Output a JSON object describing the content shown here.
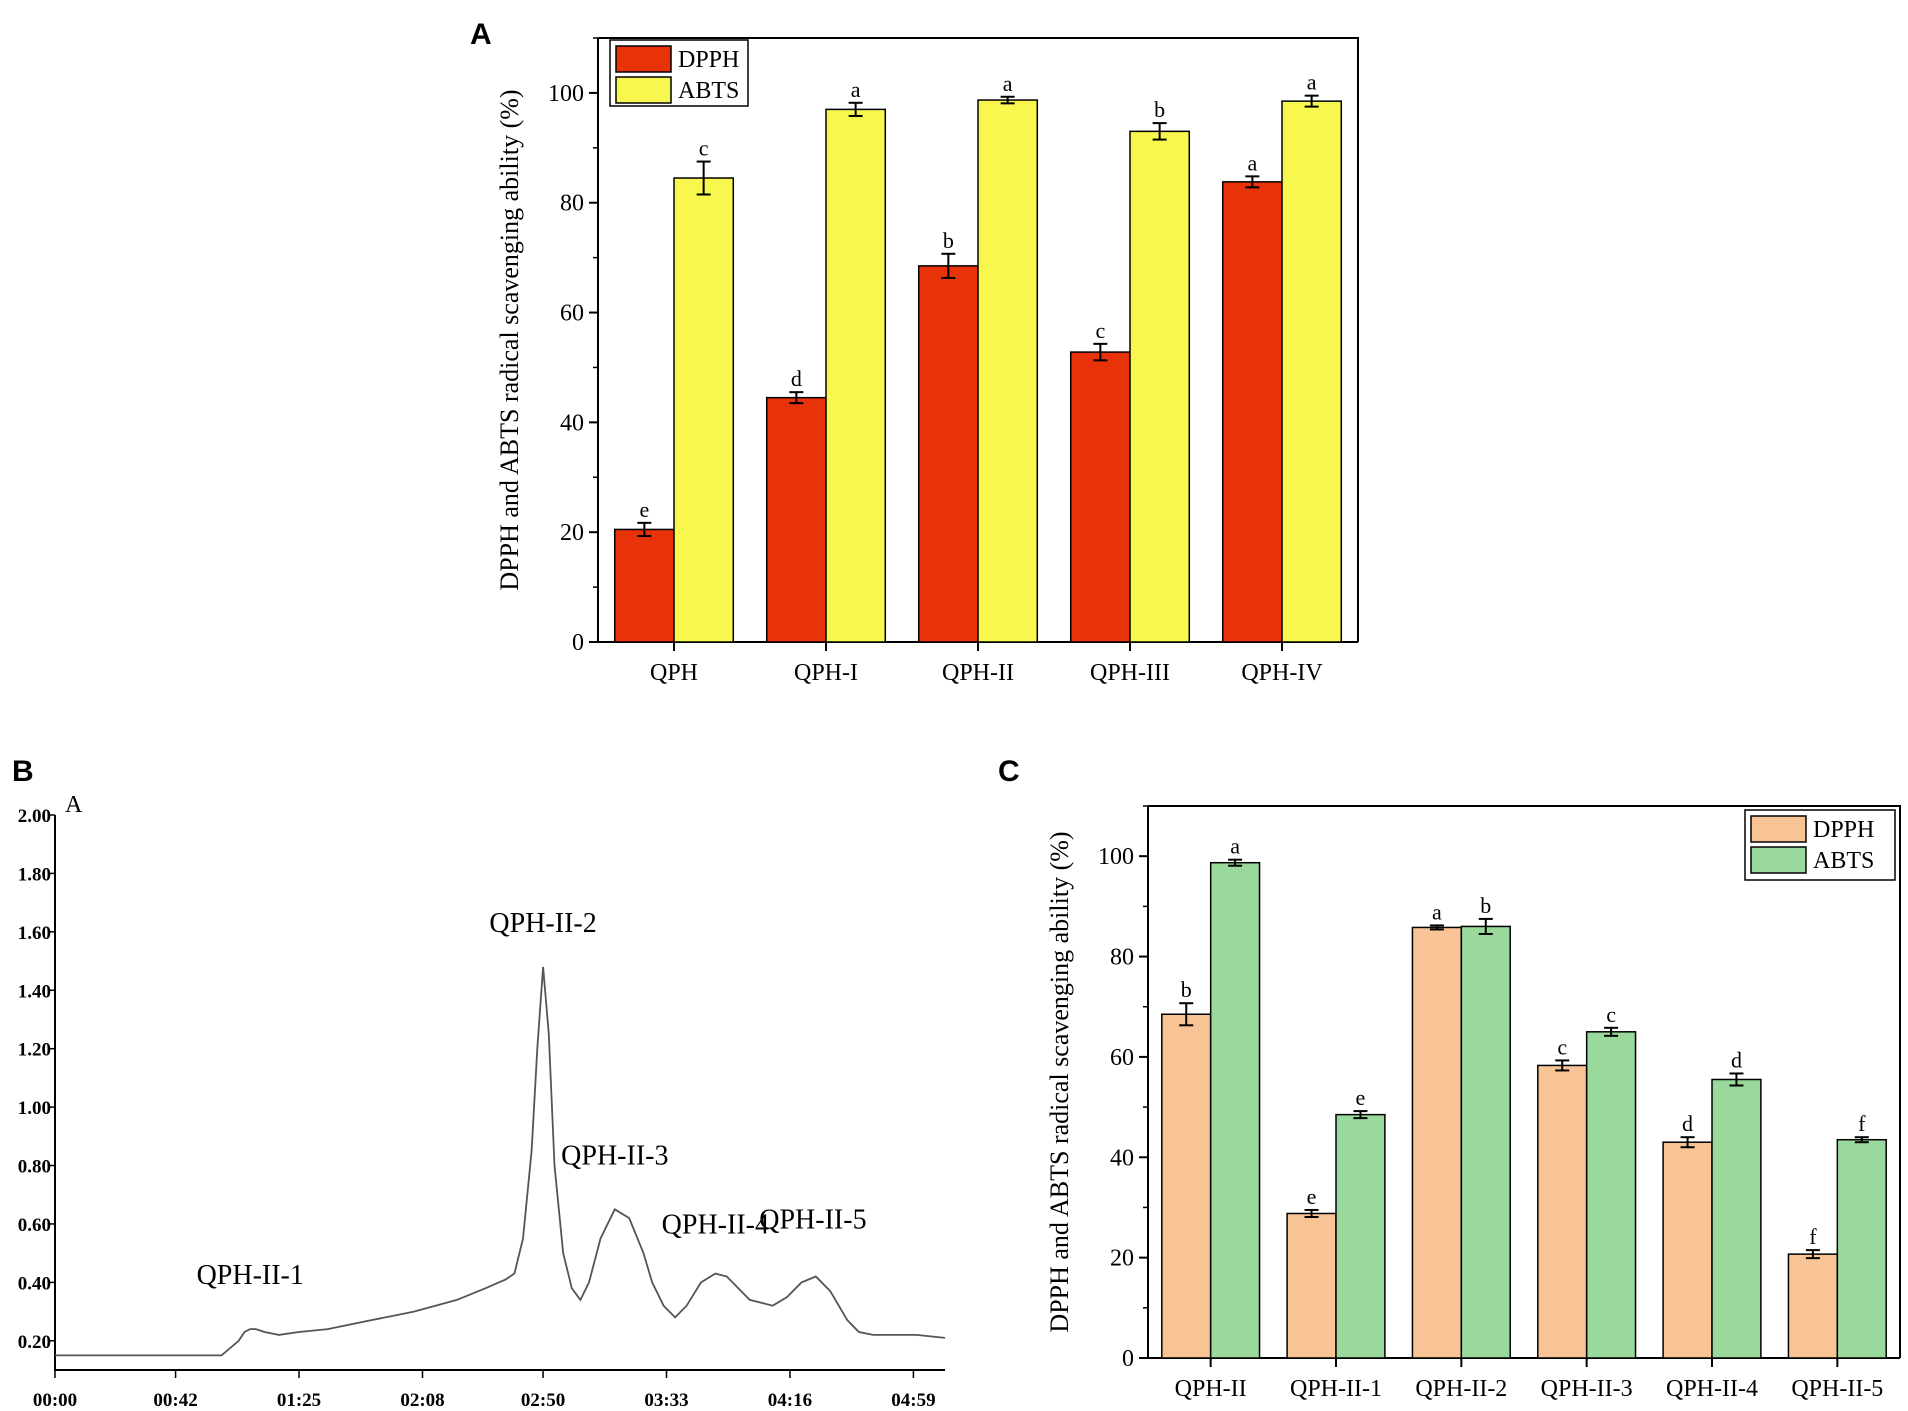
{
  "chart_data": [
    {
      "panel": "A",
      "type": "bar",
      "ylabel": "DPPH and ABTS radical scavenging ability (%)",
      "xlabel": "",
      "ylim": [
        0,
        110
      ],
      "yticks": [
        0,
        20,
        40,
        60,
        80,
        100
      ],
      "categories": [
        "QPH",
        "QPH-I",
        "QPH-II",
        "QPH-III",
        "QPH-IV"
      ],
      "series": [
        {
          "name": "DPPH",
          "color": "#e83209",
          "values": [
            20.5,
            44.5,
            68.5,
            52.8,
            83.8
          ],
          "errors": [
            1.2,
            1.0,
            2.2,
            1.5,
            1.0
          ],
          "letters": [
            "e",
            "d",
            "b",
            "c",
            "a"
          ]
        },
        {
          "name": "ABTS",
          "color": "#f7f74e",
          "values": [
            84.5,
            97.0,
            98.7,
            93.0,
            98.5
          ],
          "errors": [
            3.0,
            1.2,
            0.6,
            1.5,
            1.0
          ],
          "letters": [
            "c",
            "a",
            "a",
            "b",
            "a"
          ]
        }
      ],
      "legend": "top-left"
    },
    {
      "panel": "B",
      "type": "line",
      "ylabel": "A",
      "xlabel": "",
      "x_ticks": [
        "00:00",
        "00:42",
        "01:25",
        "02:08",
        "02:50",
        "03:33",
        "04:16",
        "04:59"
      ],
      "x_tick_seconds": [
        0,
        42,
        85,
        128,
        170,
        213,
        256,
        299
      ],
      "ylim": [
        0.1,
        2.0
      ],
      "yticks": [
        "0.20",
        "0.40",
        "0.60",
        "0.80",
        "1.00",
        "1.20",
        "1.40",
        "1.60",
        "1.80",
        "2.00"
      ],
      "x": [
        0,
        20,
        40,
        50,
        58,
        64,
        66,
        68,
        70,
        73,
        78,
        85,
        95,
        110,
        125,
        140,
        150,
        157,
        160,
        163,
        166,
        168,
        170,
        172,
        174,
        177,
        180,
        183,
        186,
        190,
        195,
        200,
        205,
        208,
        212,
        216,
        220,
        225,
        230,
        234,
        238,
        242,
        246,
        250,
        255,
        260,
        265,
        270,
        273,
        276,
        280,
        285,
        290,
        300,
        310
      ],
      "y": [
        0.15,
        0.15,
        0.15,
        0.15,
        0.15,
        0.2,
        0.23,
        0.24,
        0.24,
        0.23,
        0.22,
        0.23,
        0.24,
        0.27,
        0.3,
        0.34,
        0.38,
        0.41,
        0.43,
        0.55,
        0.85,
        1.2,
        1.48,
        1.25,
        0.8,
        0.5,
        0.38,
        0.34,
        0.4,
        0.55,
        0.65,
        0.62,
        0.5,
        0.4,
        0.32,
        0.28,
        0.32,
        0.4,
        0.43,
        0.42,
        0.38,
        0.34,
        0.33,
        0.32,
        0.35,
        0.4,
        0.42,
        0.37,
        0.32,
        0.27,
        0.23,
        0.22,
        0.22,
        0.22,
        0.21
      ],
      "annotations": [
        {
          "text": "QPH-II-1",
          "x": 68,
          "y": 0.24
        },
        {
          "text": "QPH-II-2",
          "x": 170,
          "y": 1.48
        },
        {
          "text": "QPH-II-3",
          "x": 195,
          "y": 0.65
        },
        {
          "text": "QPH-II-4",
          "x": 230,
          "y": 0.43
        },
        {
          "text": "QPH-II-5",
          "x": 264,
          "y": 0.43
        }
      ]
    },
    {
      "panel": "C",
      "type": "bar",
      "ylabel": "DPPH and ABTS radical scavenging ability (%)",
      "xlabel": "",
      "ylim": [
        0,
        110
      ],
      "yticks": [
        0,
        20,
        40,
        60,
        80,
        100
      ],
      "categories": [
        "QPH-II",
        "QPH-II-1",
        "QPH-II-2",
        "QPH-II-3",
        "QPH-II-4",
        "QPH-II-5"
      ],
      "series": [
        {
          "name": "DPPH",
          "color": "#f9c495",
          "values": [
            68.5,
            28.8,
            85.8,
            58.3,
            43.0,
            20.7
          ],
          "errors": [
            2.2,
            0.7,
            0.4,
            1.0,
            1.0,
            0.8
          ],
          "letters": [
            "b",
            "e",
            "a",
            "c",
            "d",
            "f"
          ]
        },
        {
          "name": "ABTS",
          "color": "#99d99b",
          "values": [
            98.7,
            48.5,
            86.0,
            65.0,
            55.5,
            43.5
          ],
          "errors": [
            0.6,
            0.7,
            1.5,
            0.8,
            1.2,
            0.5
          ],
          "letters": [
            "a",
            "e",
            "b",
            "c",
            "d",
            "f"
          ]
        }
      ],
      "legend": "top-right"
    }
  ],
  "panel_letters": {
    "a": "A",
    "b": "B",
    "c": "C"
  }
}
